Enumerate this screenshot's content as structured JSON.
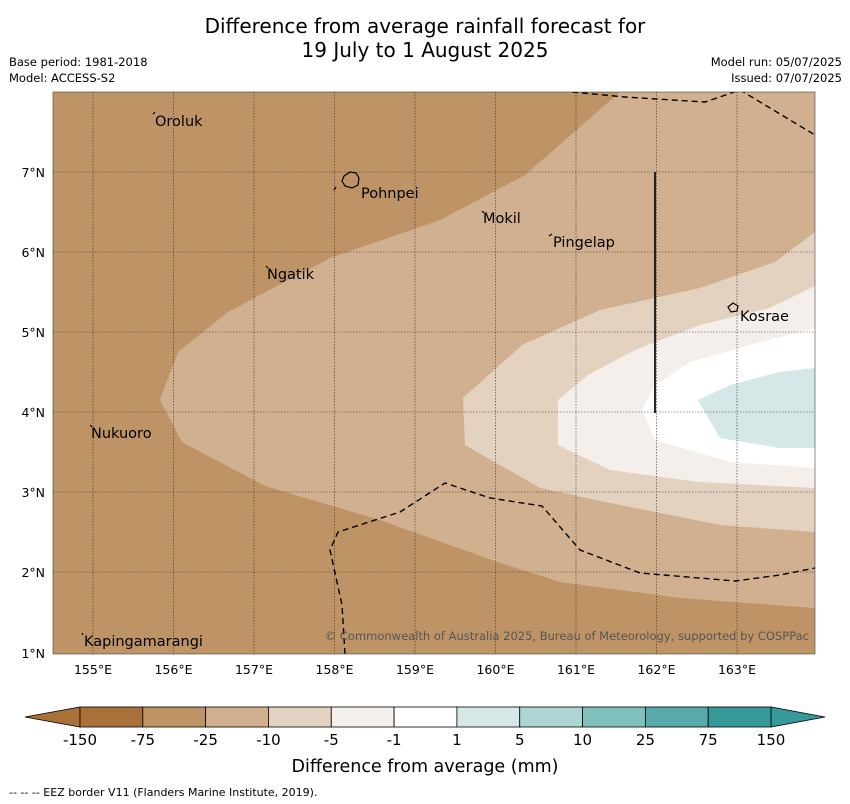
{
  "title_line1": "Difference from average rainfall forecast for",
  "title_line2": "19 July to 1 August 2025",
  "base_period": "Base period: 1981-2018",
  "model": "Model: ACCESS-S2",
  "model_run": "Model run: 05/07/2025",
  "issued": "Issued: 07/07/2025",
  "lon_ticks": [
    "155°E",
    "156°E",
    "157°E",
    "158°E",
    "159°E",
    "160°E",
    "161°E",
    "162°E",
    "163°E"
  ],
  "lat_ticks": [
    "1°N",
    "2°N",
    "3°N",
    "4°N",
    "5°N",
    "6°N",
    "7°N"
  ],
  "places": {
    "oroluk": "Oroluk",
    "pohnpei": "Pohnpei",
    "mokil": "Mokil",
    "pingelap": "Pingelap",
    "ngatik": "Ngatik",
    "kosrae": "Kosrae",
    "nukuoro": "Nukuoro",
    "kapingamarangi": "Kapingamarangi"
  },
  "copyright": "© Commonwealth of Australia 2025, Bureau of Meteorology, supported by COSPPac",
  "colorbar": {
    "labels": [
      "-150",
      "-75",
      "-25",
      "-10",
      "-5",
      "-1",
      "1",
      "5",
      "10",
      "25",
      "75",
      "150"
    ],
    "colors": [
      "#a9703a",
      "#be9467",
      "#d1b08f",
      "#e4d2c1",
      "#f4efea",
      "#ffffff",
      "#d4e8e7",
      "#acd5d3",
      "#80c1bf",
      "#58abaa",
      "#36999a"
    ],
    "xlabel": "Difference from average (mm)"
  },
  "footnote": "-- -- -- EEZ border V11 (Flanders Marine Institute, 2019)."
}
